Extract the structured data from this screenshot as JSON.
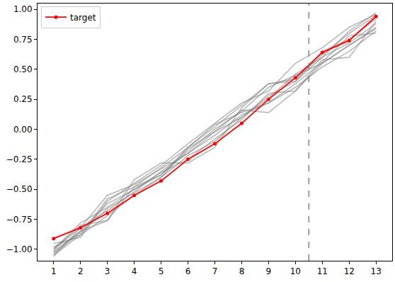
{
  "chart_data": {
    "type": "line",
    "x": [
      1,
      2,
      3,
      4,
      5,
      6,
      7,
      8,
      9,
      10,
      11,
      12,
      13
    ],
    "series": [
      {
        "color": "gray",
        "values": [
          -1.05,
          -0.88,
          -0.72,
          -0.55,
          -0.4,
          -0.22,
          -0.1,
          0.1,
          0.28,
          0.4,
          0.6,
          0.72,
          0.88
        ]
      },
      {
        "color": "gray",
        "values": [
          -1.02,
          -0.85,
          -0.62,
          -0.5,
          -0.38,
          -0.18,
          0.0,
          0.15,
          0.35,
          0.45,
          0.55,
          0.7,
          0.85
        ]
      },
      {
        "color": "gray",
        "values": [
          -0.98,
          -0.88,
          -0.58,
          -0.48,
          -0.32,
          -0.15,
          0.02,
          0.2,
          0.38,
          0.42,
          0.62,
          0.8,
          0.95
        ]
      },
      {
        "color": "gray",
        "values": [
          -1.06,
          -0.82,
          -0.68,
          -0.52,
          -0.35,
          -0.2,
          -0.05,
          0.12,
          0.22,
          0.35,
          0.52,
          0.65,
          0.82
        ]
      },
      {
        "color": "gray",
        "values": [
          -0.95,
          -0.9,
          -0.6,
          -0.45,
          -0.3,
          -0.12,
          0.05,
          0.22,
          0.32,
          0.55,
          0.68,
          0.85,
          0.96
        ]
      },
      {
        "color": "gray",
        "values": [
          -1.0,
          -0.78,
          -0.65,
          -0.5,
          -0.36,
          -0.25,
          -0.08,
          0.08,
          0.3,
          0.32,
          0.58,
          0.6,
          0.9
        ]
      },
      {
        "color": "gray",
        "values": [
          -1.03,
          -0.85,
          -0.76,
          -0.42,
          -0.28,
          -0.28,
          -0.15,
          0.18,
          0.38,
          0.4,
          0.65,
          0.75,
          0.92
        ]
      },
      {
        "color": "gray",
        "values": [
          -1.01,
          -0.8,
          -0.76,
          -0.48,
          -0.38,
          -0.15,
          0.04,
          0.14,
          0.22,
          0.38,
          0.56,
          0.78,
          0.8
        ]
      },
      {
        "color": "gray",
        "values": [
          -0.99,
          -0.82,
          -0.55,
          -0.46,
          -0.33,
          -0.2,
          -0.02,
          0.1,
          0.26,
          0.46,
          0.6,
          0.82,
          0.97
        ]
      },
      {
        "color": "gray",
        "values": [
          -1.04,
          -0.86,
          -0.66,
          -0.53,
          -0.4,
          -0.16,
          -0.02,
          0.16,
          0.14,
          0.32,
          0.55,
          0.7,
          0.84
        ]
      },
      {
        "name": "target",
        "color": "red",
        "marker": "circle",
        "values": [
          -0.91,
          -0.82,
          -0.7,
          -0.55,
          -0.43,
          -0.25,
          -0.12,
          0.05,
          0.25,
          0.43,
          0.64,
          0.74,
          0.94
        ]
      }
    ],
    "reference_lines": [
      {
        "x": 10.5,
        "line_style": "dashed",
        "color": "gray"
      }
    ],
    "xlim": [
      0.4,
      13.6
    ],
    "xticks": [
      1,
      2,
      3,
      4,
      5,
      6,
      7,
      8,
      9,
      10,
      11,
      12,
      13
    ],
    "ylim": [
      -1.095,
      1.048
    ],
    "yticks": [
      {
        "value": -1.0,
        "label": "−1.00"
      },
      {
        "value": -0.75,
        "label": "−0.75"
      },
      {
        "value": -0.5,
        "label": "−0.50"
      },
      {
        "value": -0.25,
        "label": "−0.25"
      },
      {
        "value": 0.0,
        "label": "0.00"
      },
      {
        "value": 0.25,
        "label": "0.25"
      },
      {
        "value": 0.5,
        "label": "0.50"
      },
      {
        "value": 0.75,
        "label": "0.75"
      },
      {
        "value": 1.0,
        "label": "1.00"
      }
    ],
    "grid": false,
    "legend": "upper left"
  }
}
